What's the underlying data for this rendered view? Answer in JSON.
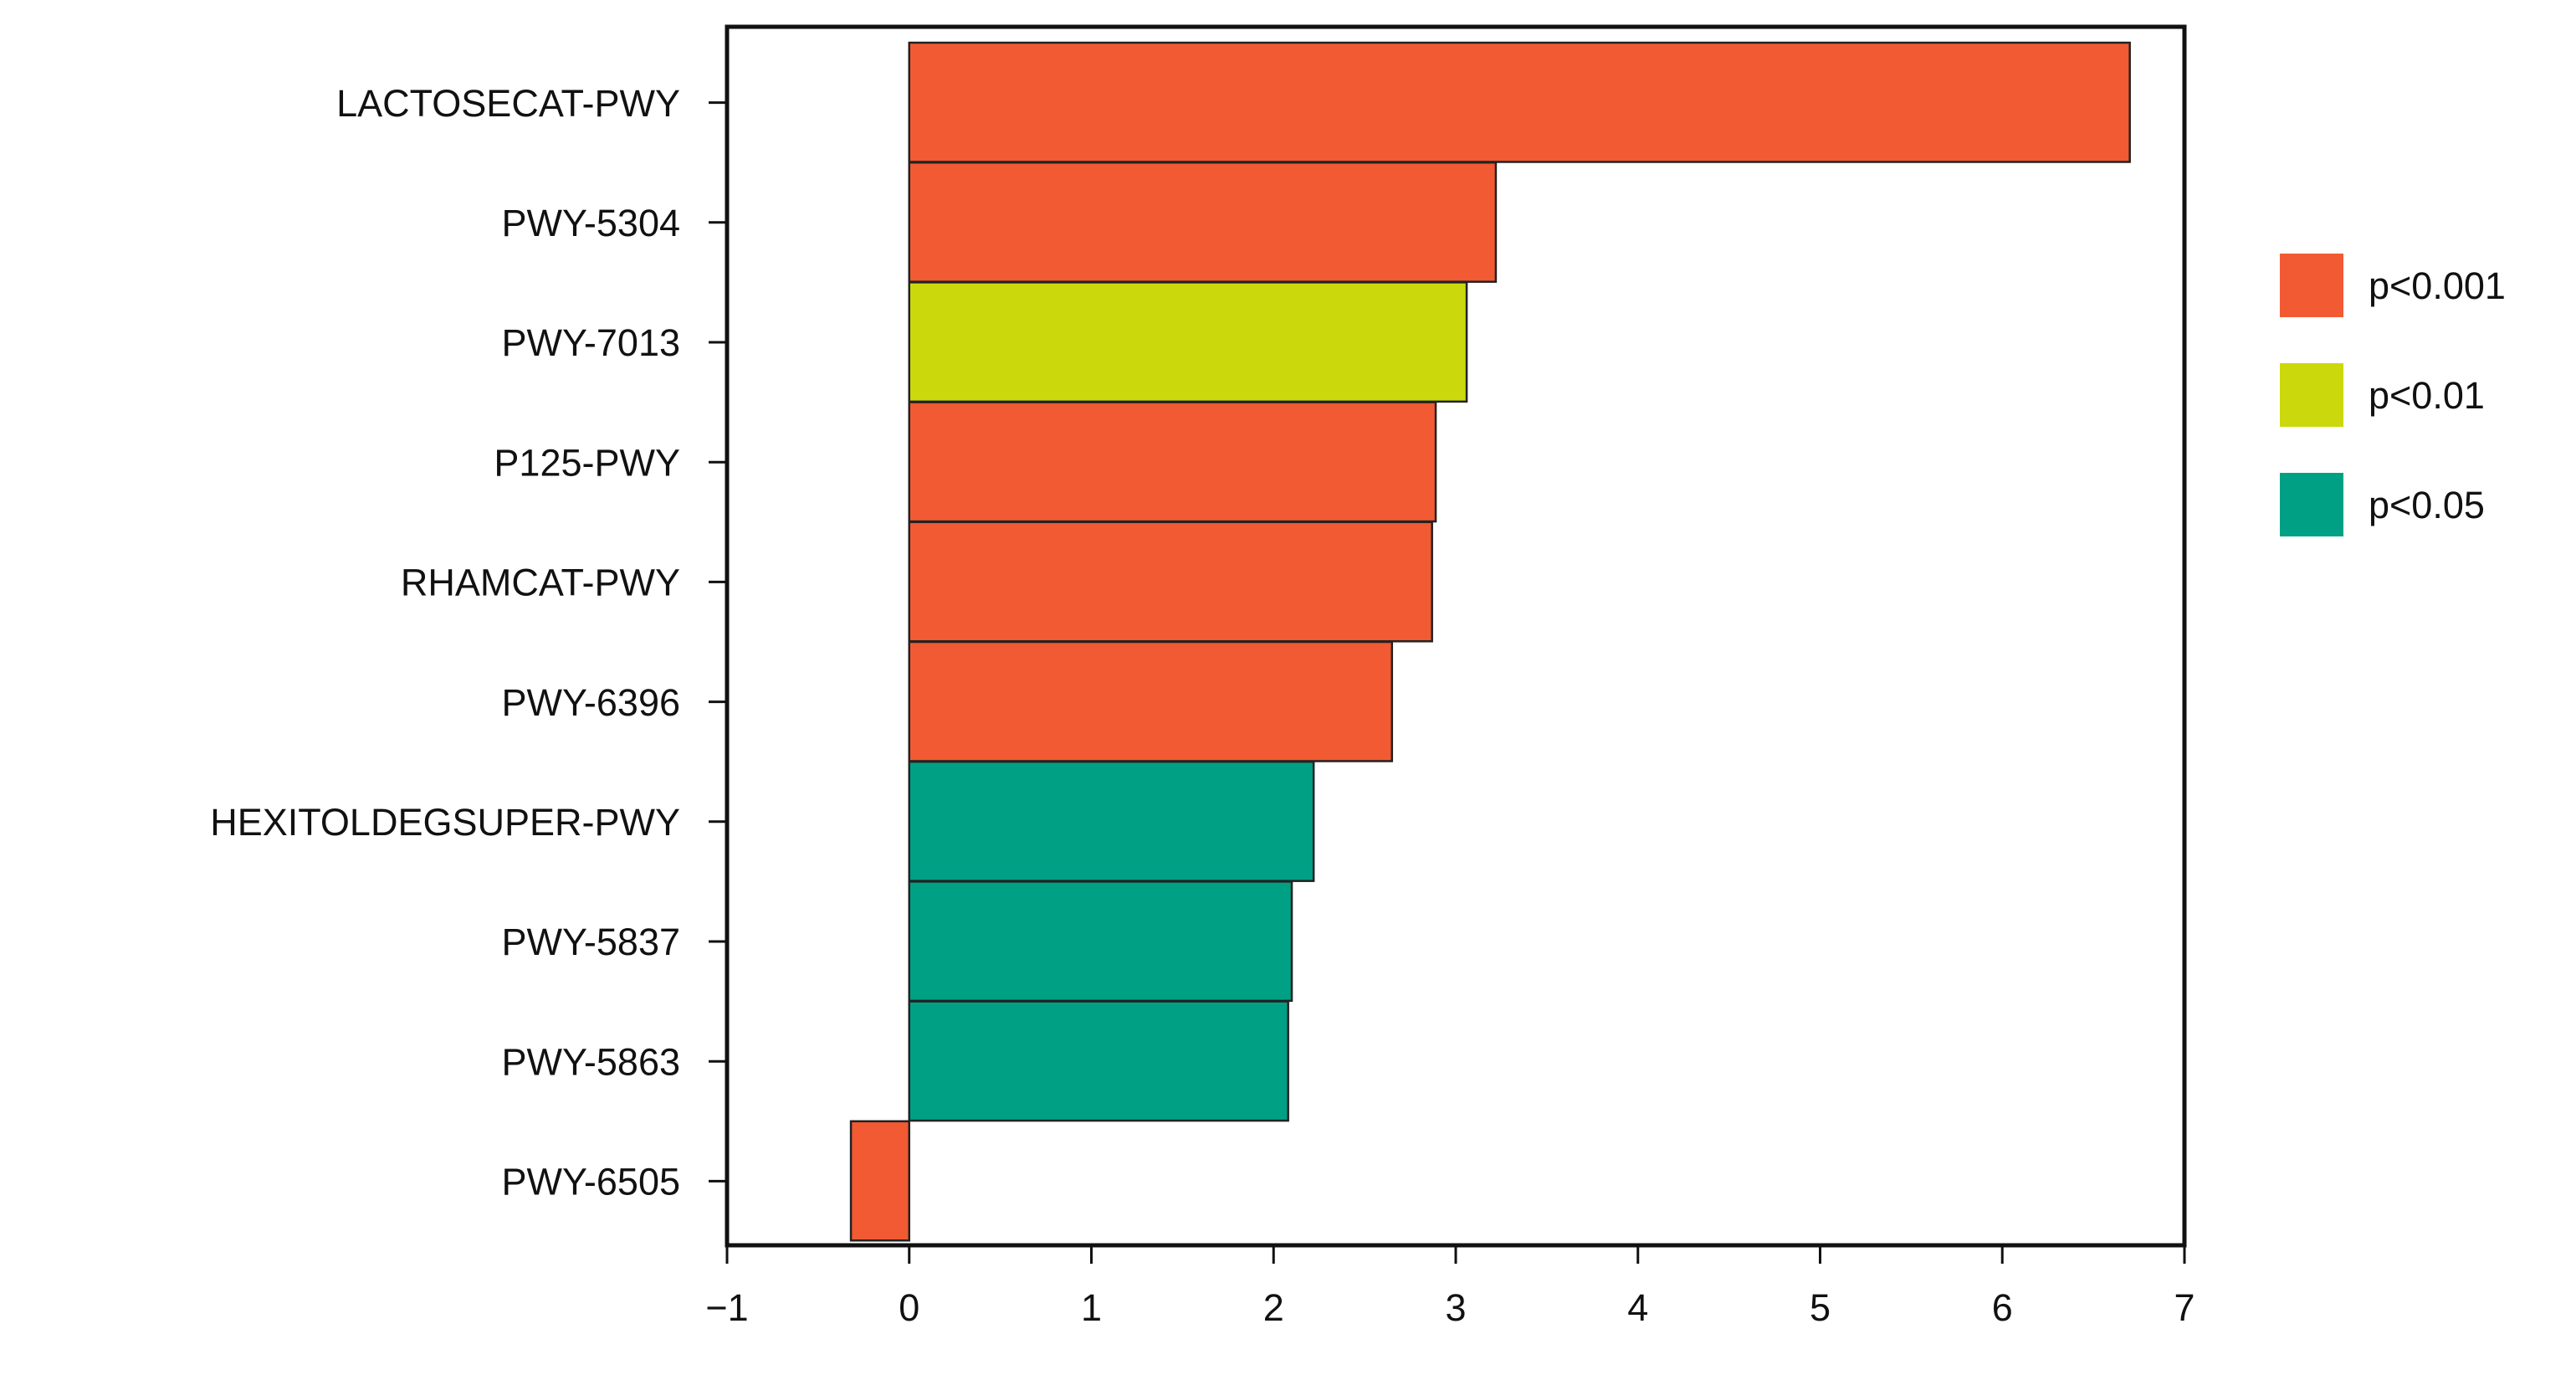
{
  "chart_data": {
    "type": "bar",
    "orientation": "horizontal",
    "categories": [
      "LACTOSECAT-PWY",
      "PWY-5304",
      "PWY-7013",
      "P125-PWY",
      "RHAMCAT-PWY",
      "PWY-6396",
      "HEXITOLDEGSUPER-PWY",
      "PWY-5837",
      "PWY-5863",
      "PWY-6505"
    ],
    "values": [
      6.7,
      3.22,
      3.06,
      2.89,
      2.87,
      2.65,
      2.22,
      2.1,
      2.08,
      -0.32
    ],
    "significance": [
      "p<0.001",
      "p<0.001",
      "p<0.01",
      "p<0.001",
      "p<0.001",
      "p<0.001",
      "p<0.05",
      "p<0.05",
      "p<0.05",
      "p<0.001"
    ],
    "xlim": [
      -1,
      7
    ],
    "xticks": [
      -1,
      0,
      1,
      2,
      3,
      4,
      5,
      6,
      7
    ],
    "xtick_labels": [
      "−1",
      "0",
      "1",
      "2",
      "3",
      "4",
      "5",
      "6",
      "7"
    ],
    "title": "",
    "xlabel": "",
    "ylabel": "",
    "legend": {
      "placement": "right",
      "entries": [
        {
          "label": "p<0.001",
          "color": "#f15a33"
        },
        {
          "label": "p<0.01",
          "color": "#cbd80b"
        },
        {
          "label": "p<0.05",
          "color": "#00a085"
        }
      ]
    },
    "grid": false,
    "colors": {
      "p<0.001": "#f15a33",
      "p<0.01": "#cbd80b",
      "p<0.05": "#00a085",
      "axis": "#111111",
      "bar_edge": "#222222"
    }
  }
}
